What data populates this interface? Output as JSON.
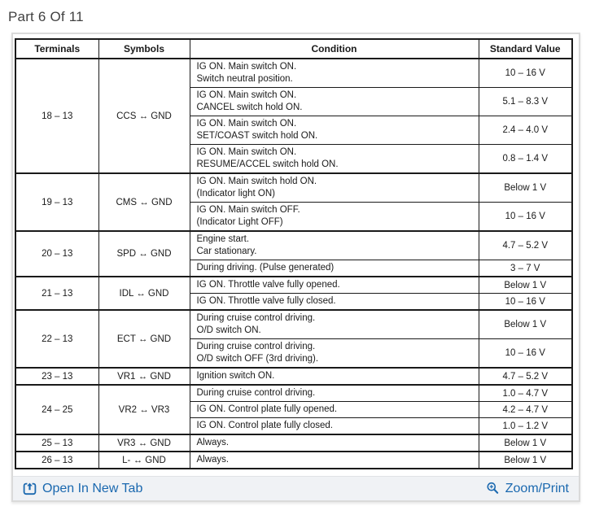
{
  "page_title": "Part 6 Of 11",
  "table": {
    "headers": [
      "Terminals",
      "Symbols",
      "Condition",
      "Standard Value"
    ],
    "groups": [
      {
        "terminals": "18 – 13",
        "symbols": "CCS ↔ GND",
        "rows": [
          {
            "condition": [
              "IG ON. Main switch ON.",
              "Switch neutral position."
            ],
            "value": "10 – 16 V"
          },
          {
            "condition": [
              "IG ON. Main switch ON.",
              "CANCEL switch hold ON."
            ],
            "value": "5.1 – 8.3 V"
          },
          {
            "condition": [
              "IG ON. Main switch ON.",
              "SET/COAST switch hold ON."
            ],
            "value": "2.4 – 4.0 V"
          },
          {
            "condition": [
              "IG ON. Main switch ON.",
              "RESUME/ACCEL switch hold ON."
            ],
            "value": "0.8 – 1.4 V"
          }
        ]
      },
      {
        "terminals": "19 – 13",
        "symbols": "CMS ↔ GND",
        "rows": [
          {
            "condition": [
              "IG ON. Main switch hold ON.",
              "(Indicator light ON)"
            ],
            "value": "Below 1 V"
          },
          {
            "condition": [
              "IG ON. Main switch OFF.",
              "(Indicator Light OFF)"
            ],
            "value": "10 – 16 V"
          }
        ]
      },
      {
        "terminals": "20 – 13",
        "symbols": "SPD ↔ GND",
        "rows": [
          {
            "condition": [
              "Engine start.",
              "Car stationary."
            ],
            "value": "4.7 – 5.2 V"
          },
          {
            "condition": [
              "During driving. (Pulse generated)"
            ],
            "value": "3 – 7 V"
          }
        ]
      },
      {
        "terminals": "21 – 13",
        "symbols": "IDL ↔ GND",
        "rows": [
          {
            "condition": [
              "IG ON. Throttle valve fully opened."
            ],
            "value": "Below 1 V"
          },
          {
            "condition": [
              "IG ON. Throttle valve fully closed."
            ],
            "value": "10 – 16 V"
          }
        ]
      },
      {
        "terminals": "22 – 13",
        "symbols": "ECT ↔ GND",
        "rows": [
          {
            "condition": [
              "During cruise control driving.",
              "O/D switch ON."
            ],
            "value": "Below 1 V"
          },
          {
            "condition": [
              "During cruise control driving.",
              "O/D switch OFF (3rd driving)."
            ],
            "value": "10 – 16 V"
          }
        ]
      },
      {
        "terminals": "23 – 13",
        "symbols": "VR1 ↔ GND",
        "rows": [
          {
            "condition": [
              "Ignition switch ON."
            ],
            "value": "4.7 – 5.2 V"
          }
        ]
      },
      {
        "terminals": "24 – 25",
        "symbols": "VR2 ↔ VR3",
        "rows": [
          {
            "condition": [
              "During cruise control driving."
            ],
            "value": "1.0 – 4.7 V"
          },
          {
            "condition": [
              "IG ON. Control plate fully opened."
            ],
            "value": "4.2 – 4.7 V"
          },
          {
            "condition": [
              "IG ON. Control plate fully closed."
            ],
            "value": "1.0 – 1.2 V"
          }
        ]
      },
      {
        "terminals": "25 – 13",
        "symbols": "VR3 ↔ GND",
        "rows": [
          {
            "condition": [
              "Always."
            ],
            "value": "Below 1 V"
          }
        ]
      },
      {
        "terminals": "26 – 13",
        "symbols": "L- ↔ GND",
        "rows": [
          {
            "condition": [
              "Always."
            ],
            "value": "Below 1 V"
          }
        ]
      }
    ]
  },
  "footer": {
    "open_label": "Open In New Tab",
    "zoom_label": "Zoom/Print"
  },
  "icons": {
    "open": "open-in-new-tab-icon",
    "zoom": "zoom-magnifier-icon"
  },
  "colors": {
    "link_blue": "#1a68af",
    "footer_bg": "#f0f2f5",
    "table_ink": "#1a1a1a",
    "title_gray": "#414141",
    "container_border": "#dadada"
  }
}
